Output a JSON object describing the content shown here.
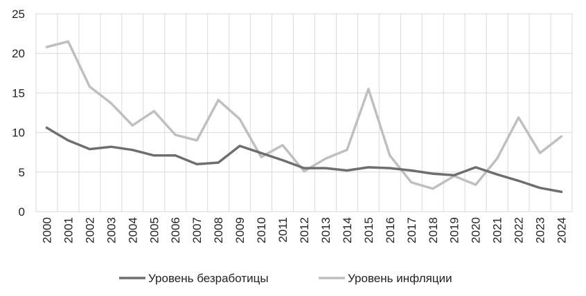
{
  "chart_data": {
    "type": "line",
    "title": "",
    "xlabel": "",
    "ylabel": "",
    "categories": [
      "2000",
      "2001",
      "2002",
      "2003",
      "2004",
      "2005",
      "2006",
      "2007",
      "2008",
      "2009",
      "2010",
      "2011",
      "2012",
      "2013",
      "2014",
      "2015",
      "2016",
      "2017",
      "2018",
      "2019",
      "2020",
      "2021",
      "2022",
      "2023",
      "2024"
    ],
    "ylim": [
      0,
      25
    ],
    "yticks": [
      0,
      5,
      10,
      15,
      20,
      25
    ],
    "grid": true,
    "legend_position": "bottom",
    "series": [
      {
        "name": "Уровень безработицы",
        "color": "#6e6e6e",
        "values": [
          10.6,
          9.0,
          7.9,
          8.2,
          7.8,
          7.1,
          7.1,
          6.0,
          6.2,
          8.3,
          7.4,
          6.5,
          5.5,
          5.5,
          5.2,
          5.6,
          5.5,
          5.2,
          4.8,
          4.6,
          5.6,
          4.7,
          3.9,
          3.0,
          2.5
        ]
      },
      {
        "name": "Уровень инфляции",
        "color": "#bfbfbf",
        "values": [
          20.8,
          21.5,
          15.8,
          13.7,
          10.9,
          12.7,
          9.7,
          9.0,
          14.1,
          11.7,
          6.9,
          8.4,
          5.1,
          6.7,
          7.8,
          15.5,
          7.1,
          3.7,
          2.9,
          4.5,
          3.4,
          6.7,
          11.9,
          7.4,
          9.5
        ]
      }
    ]
  }
}
